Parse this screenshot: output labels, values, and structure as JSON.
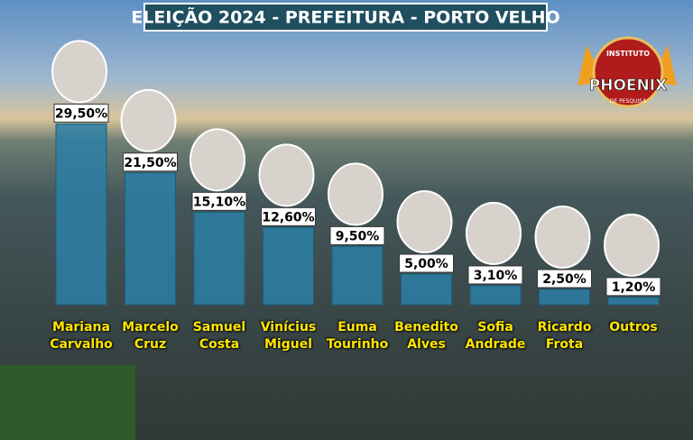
{
  "chart_data": {
    "type": "bar",
    "title": "ELEIÇÃO 2024 - PREFEITURA - PORTO VELHO",
    "categories": [
      "Mariana Carvalho",
      "Marcelo Cruz",
      "Samuel Costa",
      "Vinícius Miguel",
      "Euma Tourinho",
      "Benedito Alves",
      "Sofia Andrade",
      "Ricardo Frota",
      "Outros"
    ],
    "values": [
      29.5,
      21.5,
      15.1,
      12.6,
      9.5,
      5.0,
      3.1,
      2.5,
      1.2
    ],
    "value_labels": [
      "29,50%",
      "21,50%",
      "15,10%",
      "12,60%",
      "9,50%",
      "5,00%",
      "3,10%",
      "2,50%",
      "1,20%"
    ],
    "color": "#2b7fa6"
  },
  "logo": {
    "top": "INSTITUTO",
    "name": "PHOENIX",
    "bottom": "DE PESQUISA"
  }
}
